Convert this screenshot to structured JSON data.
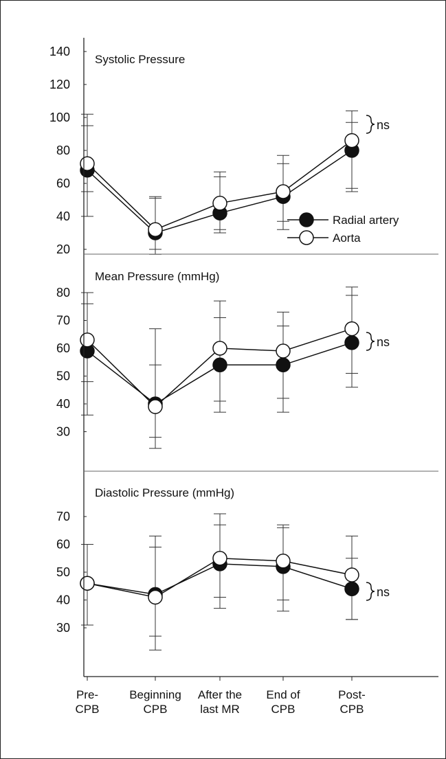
{
  "chart_data": [
    {
      "type": "line",
      "title": "Systolic Pressure",
      "categories": [
        "Pre-CPB",
        "Beginning CPB",
        "After the last MR",
        "End of CPB",
        "Post-CPB"
      ],
      "yticks": [
        20,
        40,
        60,
        80,
        100,
        120,
        140
      ],
      "series": [
        {
          "name": "Radial artery",
          "values": [
            68,
            30,
            42,
            52,
            80
          ],
          "err_low": [
            40,
            17,
            32,
            37,
            57
          ],
          "err_high": [
            95,
            52,
            67,
            77,
            97
          ]
        },
        {
          "name": "Aorta",
          "values": [
            72,
            32,
            48,
            55,
            86
          ],
          "err_low": [
            55,
            20,
            30,
            32,
            55
          ],
          "err_high": [
            102,
            51,
            64,
            72,
            104
          ]
        }
      ],
      "legend_position": "bottom-right",
      "annotation": "ns"
    },
    {
      "type": "line",
      "title": "Mean Pressure (mmHg)",
      "categories": [
        "Pre-CPB",
        "Beginning CPB",
        "After the last MR",
        "End of CPB",
        "Post-CPB"
      ],
      "yticks": [
        30,
        40,
        50,
        60,
        70,
        80
      ],
      "series": [
        {
          "name": "Radial artery",
          "values": [
            59,
            40,
            54,
            54,
            62
          ],
          "err_low": [
            36,
            28,
            37,
            37,
            46
          ],
          "err_high": [
            76,
            67,
            71,
            68,
            79
          ]
        },
        {
          "name": "Aorta",
          "values": [
            63,
            39,
            60,
            59,
            67
          ],
          "err_low": [
            48,
            24,
            41,
            42,
            51
          ],
          "err_high": [
            80,
            54,
            77,
            73,
            82
          ]
        }
      ],
      "annotation": "ns"
    },
    {
      "type": "line",
      "title": "Diastolic Pressure (mmHg)",
      "categories": [
        "Pre-CPB",
        "Beginning CPB",
        "After the last MR",
        "End of CPB",
        "Post-CPB"
      ],
      "yticks": [
        30,
        40,
        50,
        60,
        70
      ],
      "series": [
        {
          "name": "Radial artery",
          "values": [
            46,
            42,
            53,
            52,
            44
          ],
          "err_low": [
            31,
            27,
            37,
            36,
            33
          ],
          "err_high": [
            60,
            59,
            67,
            66,
            55
          ]
        },
        {
          "name": "Aorta",
          "values": [
            46,
            41,
            55,
            54,
            49
          ],
          "err_low": [
            31,
            22,
            41,
            40,
            33
          ],
          "err_high": [
            60,
            63,
            71,
            67,
            63
          ]
        }
      ],
      "annotation": "ns"
    }
  ],
  "legend": {
    "radial": "Radial artery",
    "aorta": "Aorta"
  },
  "x_labels": [
    [
      "Pre-",
      "CPB"
    ],
    [
      "Beginning",
      "CPB"
    ],
    [
      "After the",
      "last MR"
    ],
    [
      "End of",
      "CPB"
    ],
    [
      "Post-",
      "CPB"
    ]
  ]
}
